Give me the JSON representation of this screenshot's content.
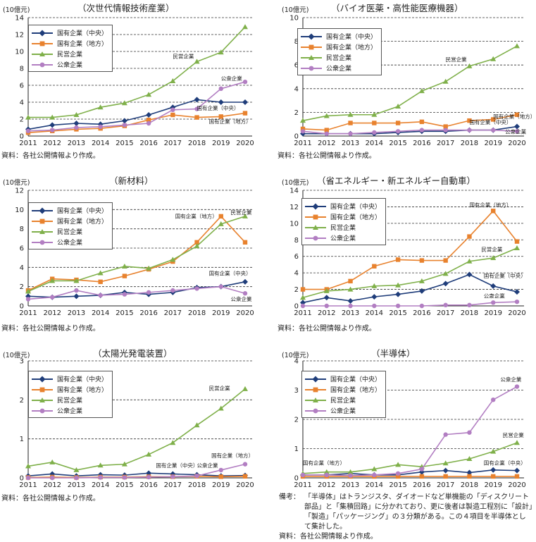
{
  "unit_label": "(10億元)",
  "source_text": "資料：各社公開情報より作成。",
  "colors": {
    "central": "#1f3d7a",
    "local": "#e8822e",
    "private": "#7fb04a",
    "public": "#b27ec2"
  },
  "legend_labels": [
    "国有企業（中央）",
    "国有企業（地方）",
    "民営企業",
    "公衆企業"
  ],
  "note": {
    "label": "備考：",
    "text": "「半導体」はトランジスタ、ダイオードなど単機能の「ディスクリート部品」と「集積回路」に分かれており、更に後者は製造工程別に「設計」「製造」「パッケージング」の３分類がある。この４項目を半導体として集計した。",
    "source": "資料：各社公開情報より作成。"
  },
  "chart_data": [
    {
      "type": "line",
      "title": "（次世代情報技術産業）",
      "x": [
        2011,
        2012,
        2013,
        2014,
        2015,
        2016,
        2017,
        2018,
        2019,
        2020
      ],
      "ylim": [
        0,
        14
      ],
      "yticks": [
        0,
        2,
        4,
        6,
        8,
        10,
        12,
        14
      ],
      "series": [
        {
          "name": "国有企業（中央）",
          "values": [
            0.8,
            1.3,
            1.5,
            1.4,
            1.8,
            2.5,
            3.4,
            4.3,
            4.0,
            4.0
          ]
        },
        {
          "name": "国有企業（地方）",
          "values": [
            0.4,
            0.6,
            0.8,
            0.9,
            1.2,
            1.9,
            2.5,
            2.2,
            2.3,
            2.7
          ]
        },
        {
          "name": "民営企業",
          "values": [
            2.2,
            2.2,
            2.5,
            3.4,
            3.9,
            4.9,
            6.5,
            8.8,
            9.9,
            12.9
          ]
        },
        {
          "name": "公衆企業",
          "values": [
            0.6,
            0.7,
            1.0,
            1.1,
            1.3,
            1.5,
            3.1,
            3.2,
            5.6,
            6.4
          ]
        }
      ],
      "annotations": [
        {
          "text": "民営企業",
          "x": 2017,
          "y": 9.2
        },
        {
          "text": "公衆企業",
          "x": 2019,
          "y": 6.6
        },
        {
          "text": "国有企業（中央）",
          "x": 2018,
          "y": 3.1
        },
        {
          "text": "国有企業（地方）",
          "x": 2018.5,
          "y": 1.5
        }
      ]
    },
    {
      "type": "line",
      "title": "（バイオ医薬・高性能医療機器）",
      "x": [
        2011,
        2012,
        2013,
        2014,
        2015,
        2016,
        2017,
        2018,
        2019,
        2020
      ],
      "ylim": [
        0,
        10
      ],
      "yticks": [
        0,
        2,
        4,
        6,
        8,
        10
      ],
      "series": [
        {
          "name": "国有企業（中央）",
          "values": [
            0.2,
            0.2,
            0.2,
            0.2,
            0.3,
            0.4,
            0.4,
            0.5,
            0.5,
            0.8
          ]
        },
        {
          "name": "国有企業（地方）",
          "values": [
            0.6,
            0.5,
            1.1,
            1.1,
            1.1,
            1.2,
            0.8,
            1.3,
            1.4,
            1.8
          ]
        },
        {
          "name": "民営企業",
          "values": [
            1.3,
            1.7,
            1.8,
            1.8,
            2.5,
            3.8,
            4.6,
            5.9,
            6.5,
            7.6
          ]
        },
        {
          "name": "公衆企業",
          "values": [
            0.4,
            0.2,
            0.2,
            0.3,
            0.4,
            0.5,
            0.5,
            0.5,
            0.5,
            0.4
          ]
        }
      ],
      "annotations": [
        {
          "text": "民営企業",
          "x": 2017,
          "y": 6.3
        },
        {
          "text": "国有企業（地方）",
          "x": 2019,
          "y": 1.5
        },
        {
          "text": "国有企業（中央）",
          "x": 2018,
          "y": 1.0
        },
        {
          "text": "公衆企業",
          "x": 2019.5,
          "y": 0.2
        }
      ]
    },
    {
      "type": "line",
      "title": "（新材料）",
      "x": [
        2011,
        2012,
        2013,
        2014,
        2015,
        2016,
        2017,
        2018,
        2019,
        2020
      ],
      "ylim": [
        0,
        12
      ],
      "yticks": [
        0,
        2,
        4,
        6,
        8,
        10,
        12
      ],
      "series": [
        {
          "name": "国有企業（中央）",
          "values": [
            1.0,
            0.9,
            1.0,
            1.1,
            1.4,
            1.2,
            1.4,
            1.9,
            2.0,
            2.5
          ]
        },
        {
          "name": "国有企業（地方）",
          "values": [
            1.6,
            2.8,
            2.7,
            2.5,
            3.1,
            3.8,
            4.6,
            6.6,
            9.3,
            6.6
          ]
        },
        {
          "name": "民営企業",
          "values": [
            1.5,
            2.6,
            2.6,
            3.4,
            4.1,
            3.9,
            4.8,
            6.2,
            8.5,
            9.3
          ]
        },
        {
          "name": "公衆企業",
          "values": [
            0.7,
            0.9,
            1.6,
            1.1,
            1.2,
            1.4,
            1.6,
            1.8,
            2.0,
            1.3
          ]
        }
      ],
      "annotations": [
        {
          "text": "国有企業（地方）",
          "x": 2017.1,
          "y": 9.1
        },
        {
          "text": "民営企業",
          "x": 2019.4,
          "y": 9.5
        },
        {
          "text": "国有企業（中央）",
          "x": 2018.5,
          "y": 3.2
        },
        {
          "text": "公衆企業",
          "x": 2019.4,
          "y": 0.5
        }
      ]
    },
    {
      "type": "line",
      "title": "（省エネルギー・新エネルギー自動車）",
      "x": [
        2011,
        2012,
        2013,
        2014,
        2015,
        2016,
        2017,
        2018,
        2019,
        2020
      ],
      "ylim": [
        0,
        14
      ],
      "yticks": [
        0,
        2,
        4,
        6,
        8,
        10,
        12,
        14
      ],
      "series": [
        {
          "name": "国有企業（中央）",
          "values": [
            0.4,
            1.0,
            0.6,
            1.1,
            1.4,
            1.8,
            2.7,
            3.8,
            2.4,
            1.7
          ]
        },
        {
          "name": "国有企業（地方）",
          "values": [
            2.0,
            2.0,
            3.0,
            4.8,
            5.6,
            5.5,
            5.5,
            8.4,
            11.5,
            7.8
          ]
        },
        {
          "name": "民営企業",
          "values": [
            1.0,
            1.8,
            2.0,
            2.4,
            2.5,
            3.0,
            3.9,
            5.4,
            5.8,
            7.0
          ]
        },
        {
          "name": "公衆企業",
          "values": [
            0.0,
            0.0,
            0.0,
            0.0,
            0.0,
            0.0,
            0.1,
            0.1,
            0.4,
            0.5
          ]
        }
      ],
      "annotations": [
        {
          "text": "国有企業（地方）",
          "x": 2018,
          "y": 12.0
        },
        {
          "text": "民営企業",
          "x": 2018.5,
          "y": 6.6
        },
        {
          "text": "国有企業（中央）",
          "x": 2018.6,
          "y": 3.4
        },
        {
          "text": "公衆企業",
          "x": 2018.6,
          "y": 1.0
        }
      ]
    },
    {
      "type": "line",
      "title": "（太陽光発電装置）",
      "x": [
        2011,
        2012,
        2013,
        2014,
        2015,
        2016,
        2017,
        2018,
        2019,
        2020
      ],
      "ylim": [
        0,
        3
      ],
      "yticks": [
        0,
        1,
        2,
        3
      ],
      "series": [
        {
          "name": "国有企業（中央）",
          "values": [
            0.05,
            0.1,
            0.05,
            0.08,
            0.07,
            0.12,
            0.1,
            0.08,
            0.05,
            0.06
          ]
        },
        {
          "name": "国有企業（地方）",
          "values": [
            0.01,
            0.02,
            0.01,
            0.02,
            0.02,
            0.03,
            0.03,
            0.04,
            0.03,
            0.04
          ]
        },
        {
          "name": "民営企業",
          "values": [
            0.3,
            0.4,
            0.2,
            0.32,
            0.35,
            0.6,
            0.9,
            1.35,
            1.78,
            2.28
          ]
        },
        {
          "name": "公衆企業",
          "values": [
            0.0,
            0.0,
            0.0,
            0.01,
            0.01,
            0.02,
            0.03,
            0.05,
            0.2,
            0.35
          ]
        }
      ],
      "annotations": [
        {
          "text": "民営企業",
          "x": 2018.5,
          "y": 2.25
        },
        {
          "text": "国有企業（地方）",
          "x": 2018.6,
          "y": 0.52
        },
        {
          "text": "国有企業（中央）",
          "x": 2016.3,
          "y": 0.27
        },
        {
          "text": "公衆企業",
          "x": 2018,
          "y": 0.27
        }
      ]
    },
    {
      "type": "line",
      "title": "（半導体）",
      "x": [
        2011,
        2012,
        2013,
        2014,
        2015,
        2016,
        2017,
        2018,
        2019,
        2020
      ],
      "ylim": [
        0,
        4
      ],
      "yticks": [
        0,
        1,
        2,
        3,
        4
      ],
      "series": [
        {
          "name": "国有企業（中央）",
          "values": [
            0.1,
            0.1,
            0.15,
            0.1,
            0.1,
            0.2,
            0.25,
            0.18,
            0.27,
            0.25
          ]
        },
        {
          "name": "国有企業（地方）",
          "values": [
            0.05,
            0.05,
            0.05,
            0.05,
            0.05,
            0.05,
            0.05,
            0.05,
            0.05,
            0.05
          ]
        },
        {
          "name": "民営企業",
          "values": [
            0.15,
            0.2,
            0.2,
            0.3,
            0.45,
            0.38,
            0.5,
            0.65,
            0.9,
            1.2
          ]
        },
        {
          "name": "公衆企業",
          "values": [
            0.1,
            0.1,
            0.08,
            0.1,
            0.15,
            0.3,
            1.48,
            1.55,
            2.67,
            3.12
          ]
        }
      ],
      "annotations": [
        {
          "text": "公衆企業",
          "x": 2019.3,
          "y": 3.3
        },
        {
          "text": "民営企業",
          "x": 2019.4,
          "y": 1.4
        },
        {
          "text": "国有企業（地方）",
          "x": 2011,
          "y": 0.45
        },
        {
          "text": "国有企業（中央）",
          "x": 2018.6,
          "y": 0.45
        }
      ]
    }
  ]
}
